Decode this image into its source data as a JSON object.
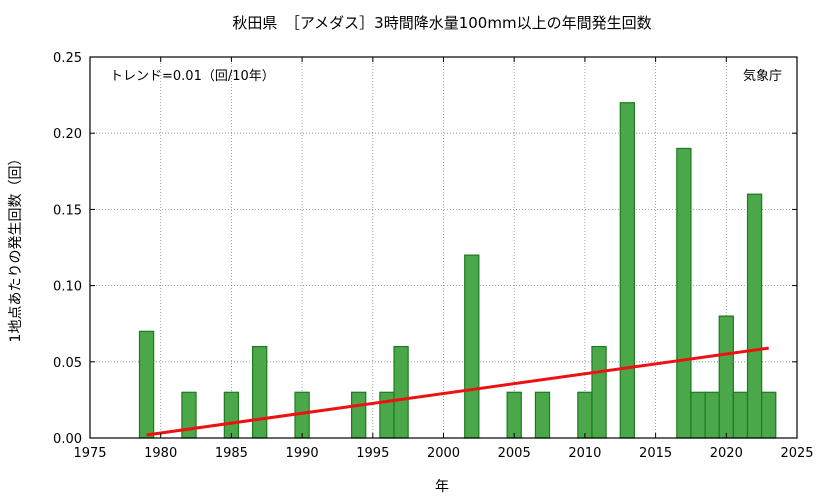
{
  "chart_data": {
    "type": "bar",
    "title": "秋田県　［アメダス］3時間降水量100mm以上の年間発生回数",
    "xlabel": "年",
    "ylabel": "1地点あたりの発生回数（回）",
    "trend_text": "トレンド=0.01（回/10年）",
    "source_text": "気象庁",
    "xlim": [
      1975,
      2025
    ],
    "ylim": [
      0,
      0.25
    ],
    "x_ticks": [
      "1975",
      "1980",
      "1985",
      "1990",
      "1995",
      "2000",
      "2005",
      "2010",
      "2015",
      "2020",
      "2025"
    ],
    "y_ticks": [
      "0.00",
      "0.05",
      "0.10",
      "0.15",
      "0.20",
      "0.25"
    ],
    "grid": true,
    "bar_color": "#4aa84a",
    "bar_edge_color": "#1f7a1f",
    "trend_color": "#ee1111",
    "years": [
      1979,
      1980,
      1981,
      1982,
      1983,
      1984,
      1985,
      1986,
      1987,
      1988,
      1989,
      1990,
      1991,
      1992,
      1993,
      1994,
      1995,
      1996,
      1997,
      1998,
      1999,
      2000,
      2001,
      2002,
      2003,
      2004,
      2005,
      2006,
      2007,
      2008,
      2009,
      2010,
      2011,
      2012,
      2013,
      2014,
      2015,
      2016,
      2017,
      2018,
      2019,
      2020,
      2021,
      2022,
      2023
    ],
    "values": [
      0.07,
      0,
      0,
      0.03,
      0,
      0,
      0.03,
      0,
      0.06,
      0,
      0,
      0.03,
      0,
      0,
      0,
      0.03,
      0,
      0.03,
      0.06,
      0,
      0,
      0,
      0,
      0.12,
      0,
      0,
      0.03,
      0,
      0.03,
      0,
      0,
      0.03,
      0.06,
      0,
      0.22,
      0,
      0,
      0,
      0.19,
      0.03,
      0.03,
      0.08,
      0.03,
      0.16,
      0.03
    ],
    "trend_line": {
      "x": [
        1979,
        2023
      ],
      "y": [
        0.002,
        0.059
      ]
    }
  }
}
